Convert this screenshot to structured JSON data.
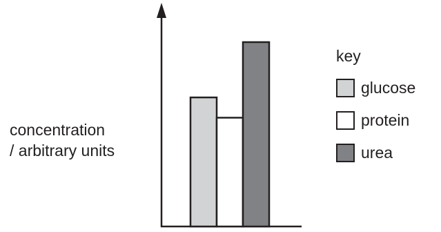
{
  "chart_data": {
    "type": "bar",
    "ylabel_lines": [
      "concentration",
      "/ arbitrary units"
    ],
    "legend_title": "key",
    "legend_position": "right",
    "ylim": [
      0,
      1
    ],
    "grid": false,
    "series": [
      {
        "name": "glucose",
        "value": 0.7,
        "color": "#d1d3d4"
      },
      {
        "name": "protein",
        "value": 0.59,
        "color": "#ffffff"
      },
      {
        "name": "urea",
        "value": 1.0,
        "color": "#808285"
      }
    ]
  }
}
